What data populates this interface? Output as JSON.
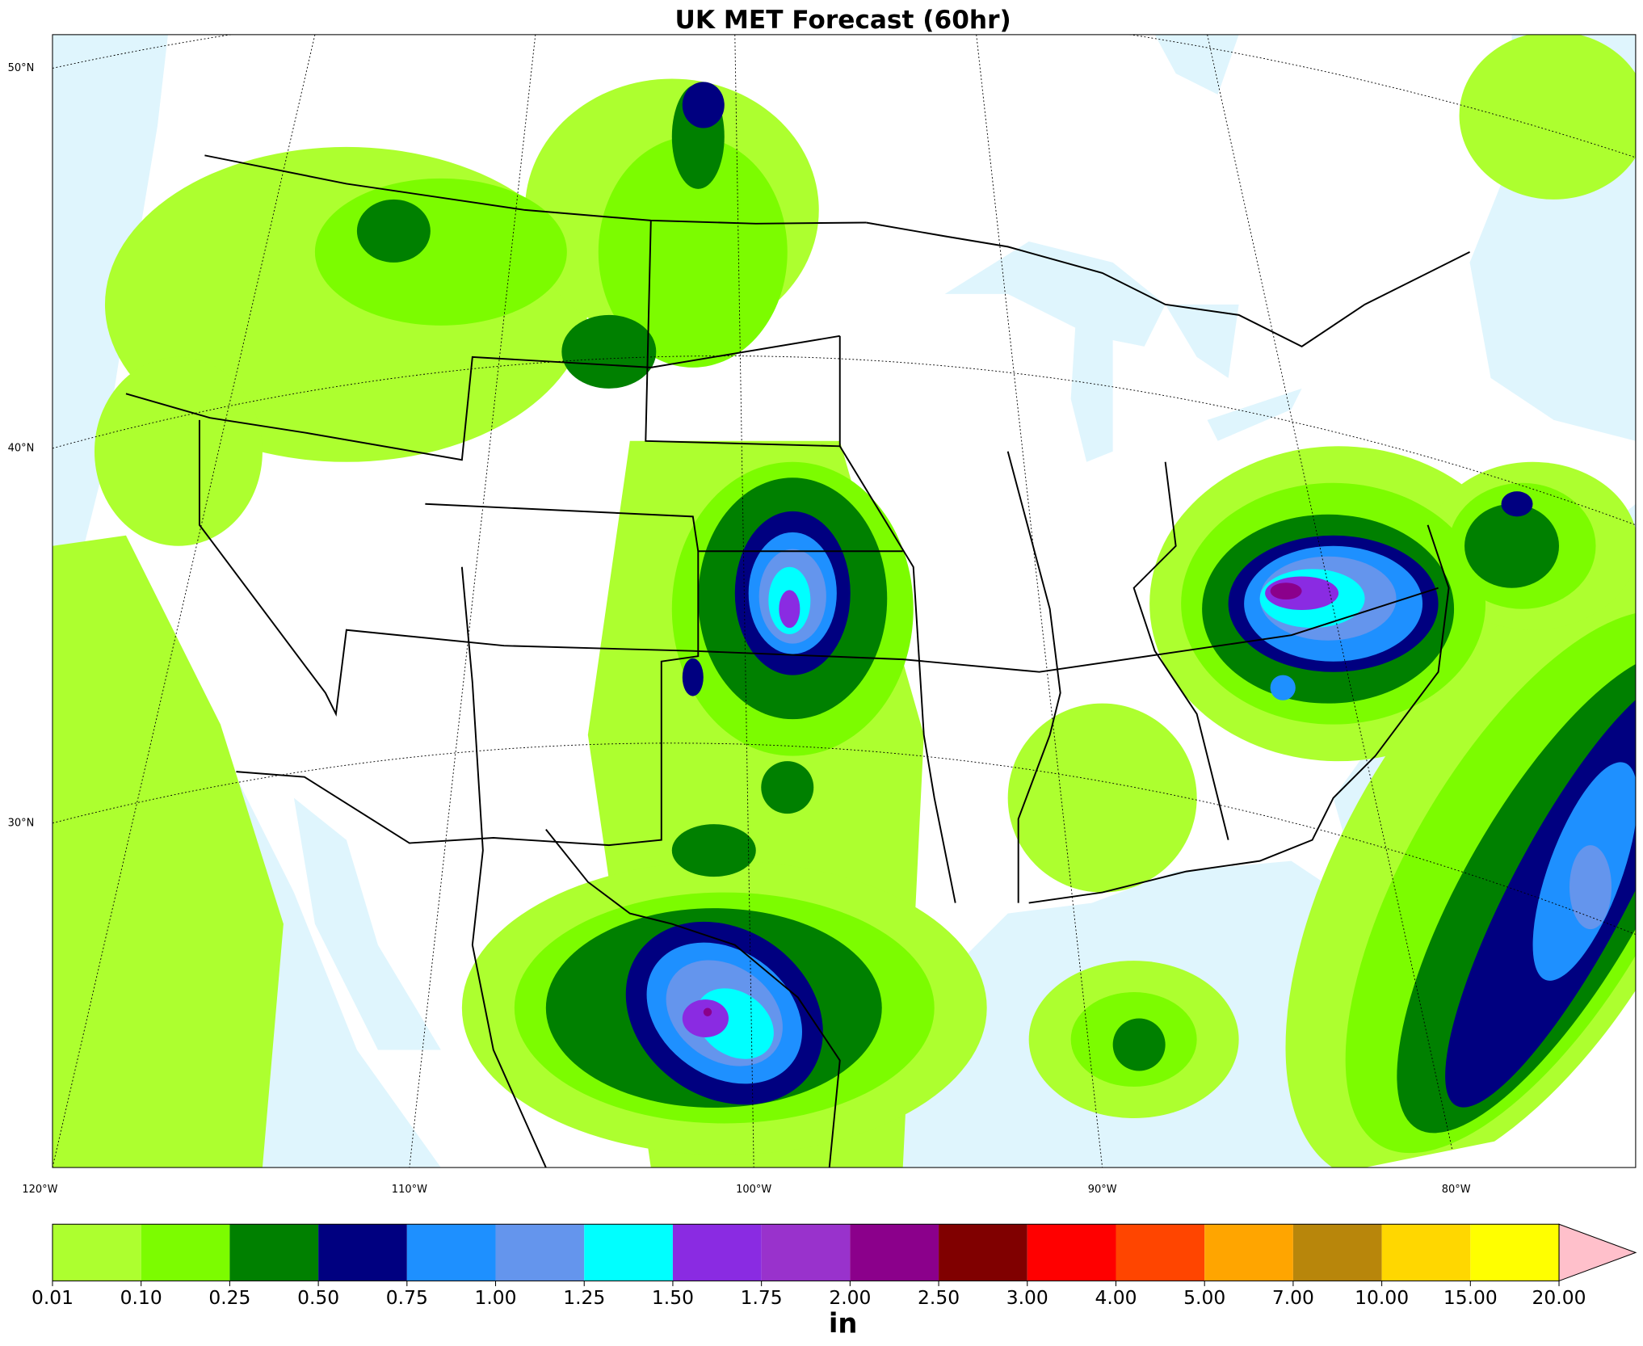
{
  "header": {
    "title": "UK MET Forecast (60hr)"
  },
  "map": {
    "lat_labels": [
      "50°N",
      "40°N",
      "30°N"
    ],
    "lon_labels": [
      "120°W",
      "110°W",
      "100°W",
      "90°W",
      "80°W"
    ]
  },
  "colorbar": {
    "unit": "in",
    "ticks": [
      {
        "value": 0.01,
        "label": "0.01"
      },
      {
        "value": 0.1,
        "label": "0.10"
      },
      {
        "value": 0.25,
        "label": "0.25"
      },
      {
        "value": 0.5,
        "label": "0.50"
      },
      {
        "value": 0.75,
        "label": "0.75"
      },
      {
        "value": 1,
        "label": "1.00"
      },
      {
        "value": 1.25,
        "label": "1.25"
      },
      {
        "value": 1.5,
        "label": "1.50"
      },
      {
        "value": 1.75,
        "label": "1.75"
      },
      {
        "value": 2,
        "label": "2.00"
      },
      {
        "value": 2.5,
        "label": "2.50"
      },
      {
        "value": 3,
        "label": "3.00"
      },
      {
        "value": 4,
        "label": "4.00"
      },
      {
        "value": 5,
        "label": "5.00"
      },
      {
        "value": 7,
        "label": "7.00"
      },
      {
        "value": 10,
        "label": "10.00"
      },
      {
        "value": 15,
        "label": "15.00"
      },
      {
        "value": 20,
        "label": "20.00"
      }
    ],
    "colors": [
      "#adff2f",
      "#7cfc00",
      "#008000",
      "#000080",
      "#1e90ff",
      "#6495ed",
      "#00ffff",
      "#8a2be2",
      "#9932cc",
      "#8b008b",
      "#800000",
      "#ff0000",
      "#ff4500",
      "#ffa500",
      "#b8860b",
      "#ffd700",
      "#ffff00",
      "#ffc0cb"
    ]
  }
}
